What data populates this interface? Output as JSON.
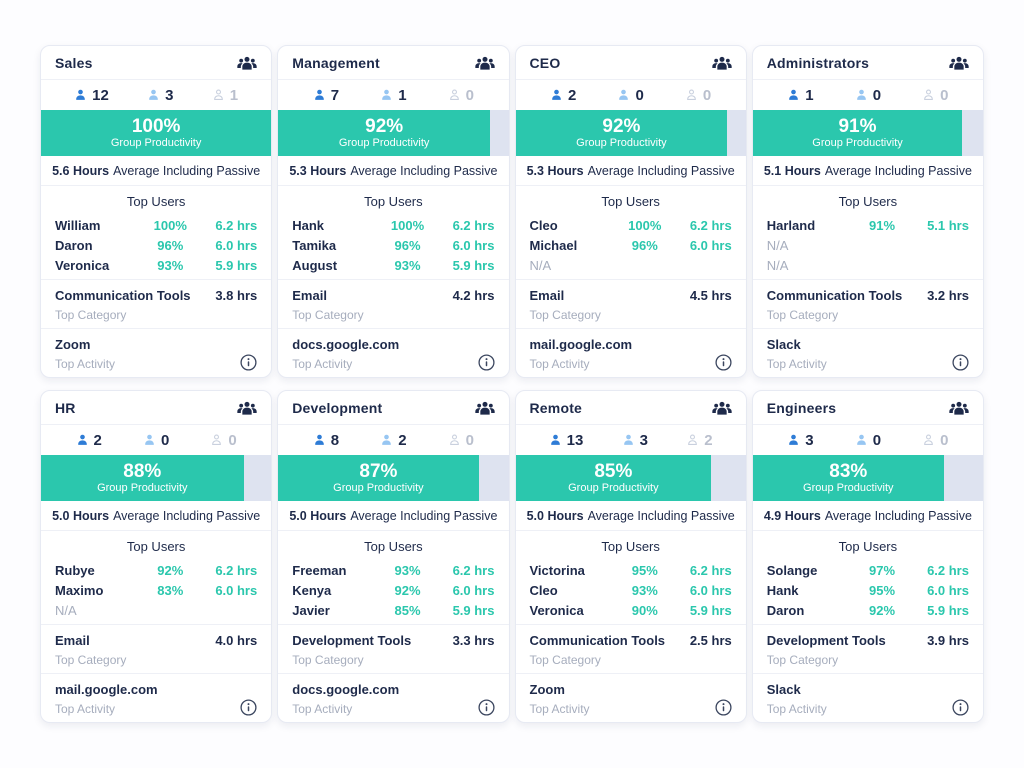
{
  "ui": {
    "group_productivity_label": "Group Productivity",
    "average_label": "Average Including Passive",
    "top_users_label": "Top Users",
    "top_category_label": "Top Category",
    "top_activity_label": "Top Activity"
  },
  "colors": {
    "accent_teal": "#2bc7ad",
    "progress_track": "#dee3f0",
    "text_navy": "#1e2a4a",
    "text_gray": "#a6adbd",
    "icon_active_blue": "#2e7cd6",
    "icon_passive_blue": "#97c6f2",
    "icon_offline_gray": "#c9d0de"
  },
  "cards": [
    {
      "title": "Sales",
      "counts": {
        "active": "12",
        "passive": "3",
        "offline": "1"
      },
      "productivity_pct": 100,
      "productivity_text": "100%",
      "avg_hours": "5.6 Hours",
      "users": [
        {
          "name": "William",
          "pct": "100%",
          "hrs": "6.2 hrs"
        },
        {
          "name": "Daron",
          "pct": "96%",
          "hrs": "6.0 hrs"
        },
        {
          "name": "Veronica",
          "pct": "93%",
          "hrs": "5.9 hrs"
        }
      ],
      "top_category": {
        "name": "Communication Tools",
        "hrs": "3.8 hrs"
      },
      "top_activity": "Zoom"
    },
    {
      "title": "Management",
      "counts": {
        "active": "7",
        "passive": "1",
        "offline": "0"
      },
      "productivity_pct": 92,
      "productivity_text": "92%",
      "avg_hours": "5.3 Hours",
      "users": [
        {
          "name": "Hank",
          "pct": "100%",
          "hrs": "6.2 hrs"
        },
        {
          "name": "Tamika",
          "pct": "96%",
          "hrs": "6.0 hrs"
        },
        {
          "name": "August",
          "pct": "93%",
          "hrs": "5.9 hrs"
        }
      ],
      "top_category": {
        "name": "Email",
        "hrs": "4.2 hrs"
      },
      "top_activity": "docs.google.com"
    },
    {
      "title": "CEO",
      "counts": {
        "active": "2",
        "passive": "0",
        "offline": "0"
      },
      "productivity_pct": 92,
      "productivity_text": "92%",
      "avg_hours": "5.3 Hours",
      "users": [
        {
          "name": "Cleo",
          "pct": "100%",
          "hrs": "6.2 hrs"
        },
        {
          "name": "Michael",
          "pct": "96%",
          "hrs": "6.0 hrs"
        },
        {
          "name": "N/A",
          "pct": "",
          "hrs": ""
        }
      ],
      "top_category": {
        "name": "Email",
        "hrs": "4.5 hrs"
      },
      "top_activity": "mail.google.com"
    },
    {
      "title": "Administrators",
      "counts": {
        "active": "1",
        "passive": "0",
        "offline": "0"
      },
      "productivity_pct": 91,
      "productivity_text": "91%",
      "avg_hours": "5.1 Hours",
      "users": [
        {
          "name": "Harland",
          "pct": "91%",
          "hrs": "5.1 hrs"
        },
        {
          "name": "N/A",
          "pct": "",
          "hrs": ""
        },
        {
          "name": "N/A",
          "pct": "",
          "hrs": ""
        }
      ],
      "top_category": {
        "name": "Communication Tools",
        "hrs": "3.2 hrs"
      },
      "top_activity": "Slack"
    },
    {
      "title": "HR",
      "counts": {
        "active": "2",
        "passive": "0",
        "offline": "0"
      },
      "productivity_pct": 88,
      "productivity_text": "88%",
      "avg_hours": "5.0 Hours",
      "users": [
        {
          "name": "Rubye",
          "pct": "92%",
          "hrs": "6.2 hrs"
        },
        {
          "name": "Maximo",
          "pct": "83%",
          "hrs": "6.0 hrs"
        },
        {
          "name": "N/A",
          "pct": "",
          "hrs": ""
        }
      ],
      "top_category": {
        "name": "Email",
        "hrs": "4.0 hrs"
      },
      "top_activity": "mail.google.com"
    },
    {
      "title": "Development",
      "counts": {
        "active": "8",
        "passive": "2",
        "offline": "0"
      },
      "productivity_pct": 87,
      "productivity_text": "87%",
      "avg_hours": "5.0 Hours",
      "users": [
        {
          "name": "Freeman",
          "pct": "93%",
          "hrs": "6.2 hrs"
        },
        {
          "name": "Kenya",
          "pct": "92%",
          "hrs": "6.0 hrs"
        },
        {
          "name": "Javier",
          "pct": "85%",
          "hrs": "5.9 hrs"
        }
      ],
      "top_category": {
        "name": "Development Tools",
        "hrs": "3.3 hrs"
      },
      "top_activity": "docs.google.com"
    },
    {
      "title": "Remote",
      "counts": {
        "active": "13",
        "passive": "3",
        "offline": "2"
      },
      "productivity_pct": 85,
      "productivity_text": "85%",
      "avg_hours": "5.0 Hours",
      "users": [
        {
          "name": "Victorina",
          "pct": "95%",
          "hrs": "6.2 hrs"
        },
        {
          "name": "Cleo",
          "pct": "93%",
          "hrs": "6.0 hrs"
        },
        {
          "name": "Veronica",
          "pct": "90%",
          "hrs": "5.9 hrs"
        }
      ],
      "top_category": {
        "name": "Communication Tools",
        "hrs": "2.5 hrs"
      },
      "top_activity": "Zoom"
    },
    {
      "title": "Engineers",
      "counts": {
        "active": "3",
        "passive": "0",
        "offline": "0"
      },
      "productivity_pct": 83,
      "productivity_text": "83%",
      "avg_hours": "4.9 Hours",
      "users": [
        {
          "name": "Solange",
          "pct": "97%",
          "hrs": "6.2 hrs"
        },
        {
          "name": "Hank",
          "pct": "95%",
          "hrs": "6.0 hrs"
        },
        {
          "name": "Daron",
          "pct": "92%",
          "hrs": "5.9 hrs"
        }
      ],
      "top_category": {
        "name": "Development Tools",
        "hrs": "3.9 hrs"
      },
      "top_activity": "Slack"
    }
  ]
}
